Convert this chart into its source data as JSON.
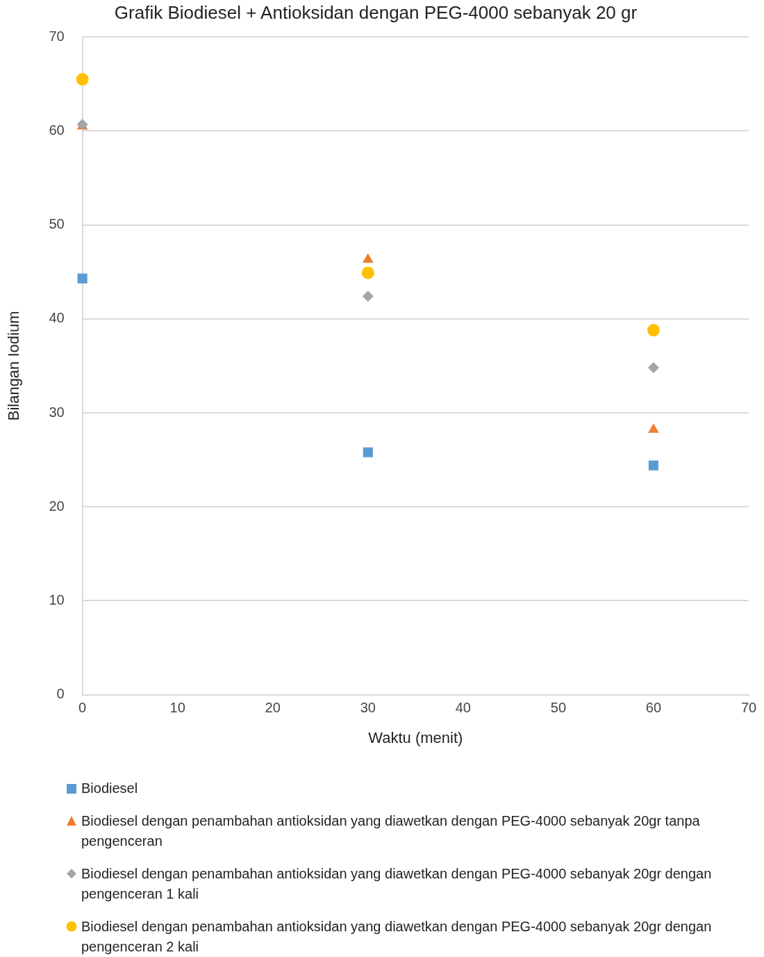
{
  "chart_data": {
    "type": "scatter",
    "title": "Grafik Biodiesel + Antioksidan dengan PEG-4000 sebanyak 20 gr",
    "xlabel": "Waktu (menit)",
    "ylabel": "Bilangan Iodium",
    "x": [
      0,
      30,
      60
    ],
    "series": [
      {
        "name": "Biodiesel",
        "color": "#5b9bd5",
        "marker": "square",
        "values": [
          44.3,
          25.8,
          24.4
        ]
      },
      {
        "name": "Biodiesel dengan penambahan antioksidan yang diawetkan dengan PEG-4000 sebanyak 20gr tanpa pengenceran",
        "color": "#ed7d31",
        "marker": "triangle",
        "values": [
          60.5,
          46.3,
          28.2
        ]
      },
      {
        "name": "Biodiesel dengan penambahan antioksidan yang diawetkan dengan PEG-4000 sebanyak 20gr dengan pengenceran 1 kali",
        "color": "#a5a5a5",
        "marker": "diamond",
        "values": [
          60.7,
          42.4,
          34.8
        ]
      },
      {
        "name": "Biodiesel dengan penambahan antioksidan yang diawetkan dengan PEG-4000 sebanyak 20gr dengan pengenceran 2 kali",
        "color": "#ffc000",
        "marker": "circle",
        "values": [
          65.5,
          44.9,
          38.8
        ]
      }
    ],
    "xlim": [
      0,
      70
    ],
    "xticks": [
      0,
      10,
      20,
      30,
      40,
      50,
      60,
      70
    ],
    "ylim": [
      0,
      70
    ],
    "yticks": [
      0,
      10,
      20,
      30,
      40,
      50,
      60,
      70
    ],
    "grid": "y",
    "legend": "bottom"
  }
}
